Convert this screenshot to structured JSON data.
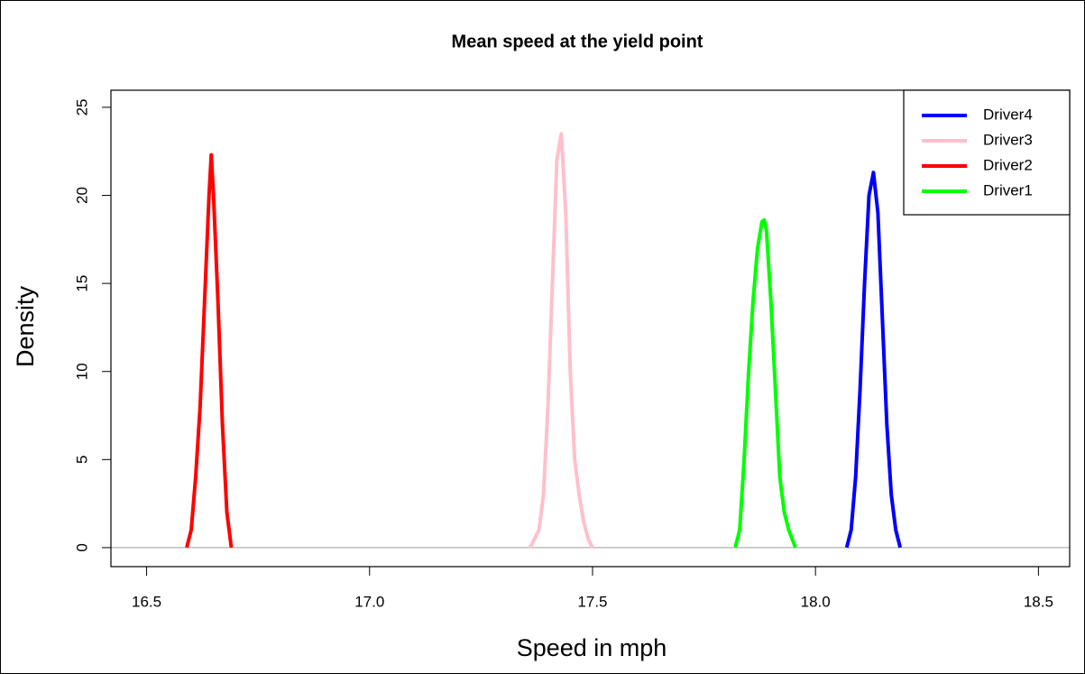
{
  "chart_data": {
    "type": "line",
    "title": "Mean speed at the yield point",
    "x_label": "Speed in mph",
    "y_label": "Density",
    "xlim": [
      16.42,
      18.57
    ],
    "ylim": [
      -1.08,
      25.97
    ],
    "xticks": [
      16.5,
      17.0,
      17.5,
      18.0,
      18.5
    ],
    "yticks": [
      0,
      5,
      10,
      15,
      20,
      25
    ],
    "hline": 0,
    "legend": "top-right",
    "series": [
      {
        "name": "Driver4",
        "color": "#0000ff",
        "x": [
          18.07,
          18.08,
          18.09,
          18.1,
          18.11,
          18.12,
          18.13,
          18.14,
          18.15,
          18.16,
          18.17,
          18.18,
          18.19
        ],
        "values": [
          0,
          1,
          4,
          9,
          15,
          20,
          21.3,
          19,
          13,
          7,
          3,
          1,
          0
        ]
      },
      {
        "name": "Driver3",
        "color": "#ffc0cb",
        "x": [
          17.36,
          17.37,
          17.38,
          17.39,
          17.4,
          17.41,
          17.42,
          17.43,
          17.44,
          17.45,
          17.46,
          17.47,
          17.48,
          17.49,
          17.5
        ],
        "values": [
          0,
          0.5,
          1,
          3,
          8,
          15,
          22,
          23.5,
          19,
          10,
          5,
          3,
          1.5,
          0.5,
          0
        ]
      },
      {
        "name": "Driver2",
        "color": "#ff0000",
        "x": [
          16.59,
          16.6,
          16.61,
          16.62,
          16.63,
          16.64,
          16.645,
          16.65,
          16.66,
          16.67,
          16.68,
          16.69
        ],
        "values": [
          0,
          1,
          4,
          8,
          14,
          20,
          22.3,
          20,
          14,
          7,
          2,
          0
        ]
      },
      {
        "name": "Driver1",
        "color": "#00ff00",
        "x": [
          17.82,
          17.83,
          17.84,
          17.85,
          17.86,
          17.87,
          17.88,
          17.885,
          17.89,
          17.9,
          17.91,
          17.92,
          17.93,
          17.94,
          17.955
        ],
        "values": [
          0,
          1,
          5,
          10,
          14,
          17,
          18.5,
          18.6,
          18,
          14,
          9,
          4,
          2,
          1,
          0
        ]
      }
    ]
  }
}
